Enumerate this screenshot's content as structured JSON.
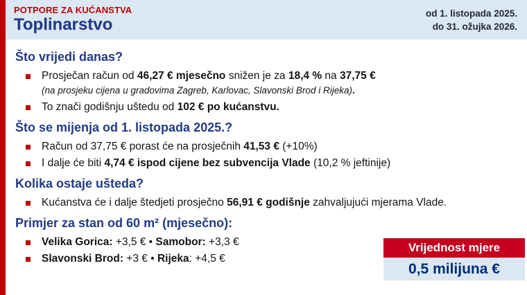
{
  "slide": {
    "kicker": "POTPORE ZA KUĆANSTVA",
    "title": "Toplinarstvo",
    "date_line1": "od 1. listopada 2025.",
    "date_line2": "do 31. ožujka 2026."
  },
  "colors": {
    "accent_red": "#c00000",
    "badge_red": "#c4001e",
    "heading_blue": "#223a87",
    "navy": "#002d74",
    "header_bg": "#dbe8f4",
    "badge_value_bg": "#dbe8f4"
  },
  "sections": [
    {
      "heading": "Što vrijedi danas?",
      "items": [
        {
          "type": "bullet",
          "runs": [
            {
              "t": "Prosječan račun od "
            },
            {
              "t": "46,27 € mjesečno",
              "b": true
            },
            {
              "t": " snižen je za "
            },
            {
              "t": "18,4 %",
              "b": true
            },
            {
              "t": " na "
            },
            {
              "t": "37,75 €",
              "b": true
            }
          ]
        },
        {
          "type": "note",
          "runs": [
            {
              "t": "(na prosjeku cijena u gradovima Zagreb, Karlovac, Slavonski Brod i Rijeka)",
              "i": true
            },
            {
              "t": ".",
              "b": true
            }
          ]
        },
        {
          "type": "bullet",
          "runs": [
            {
              "t": "To znači godišnju uštedu od "
            },
            {
              "t": "102 € po kućanstvu.",
              "b": true
            }
          ]
        }
      ]
    },
    {
      "heading": "Što se mijenja od 1. listopada 2025.?",
      "items": [
        {
          "type": "bullet",
          "runs": [
            {
              "t": "Račun od 37,75 € porast će na prosječnih "
            },
            {
              "t": "41,53 €",
              "b": true
            },
            {
              "t": " (+10%)"
            }
          ]
        },
        {
          "type": "bullet",
          "runs": [
            {
              "t": "I dalje će biti "
            },
            {
              "t": "4,74 € ispod cijene bez subvencija Vlade",
              "b": true
            },
            {
              "t": " (10,2 % jeftinije)"
            }
          ]
        }
      ]
    },
    {
      "heading": "Kolika ostaje ušteda?",
      "items": [
        {
          "type": "bullet",
          "runs": [
            {
              "t": "Kućanstva će i dalje štedjeti prosječno "
            },
            {
              "t": "56,91 € godišnje",
              "b": true
            },
            {
              "t": " zahvaljujući mjerama Vlade."
            }
          ]
        }
      ]
    },
    {
      "heading": "Primjer za stan od 60 m² (mjesečno):",
      "items": [
        {
          "type": "bullet",
          "runs": [
            {
              "t": "Velika Gorica:",
              "b": true
            },
            {
              "t": " +3,5 €  • "
            },
            {
              "t": "Samobor:",
              "b": true
            },
            {
              "t": " +3,3 €"
            }
          ]
        },
        {
          "type": "bullet",
          "runs": [
            {
              "t": "Slavonski Brod:",
              "b": true
            },
            {
              "t": " +3 € •  "
            },
            {
              "t": "Rijeka",
              "b": true
            },
            {
              "t": ": +4,5 €"
            }
          ]
        }
      ]
    }
  ],
  "badge": {
    "label": "Vrijednost mjere",
    "value": "0,5 milijuna €"
  }
}
